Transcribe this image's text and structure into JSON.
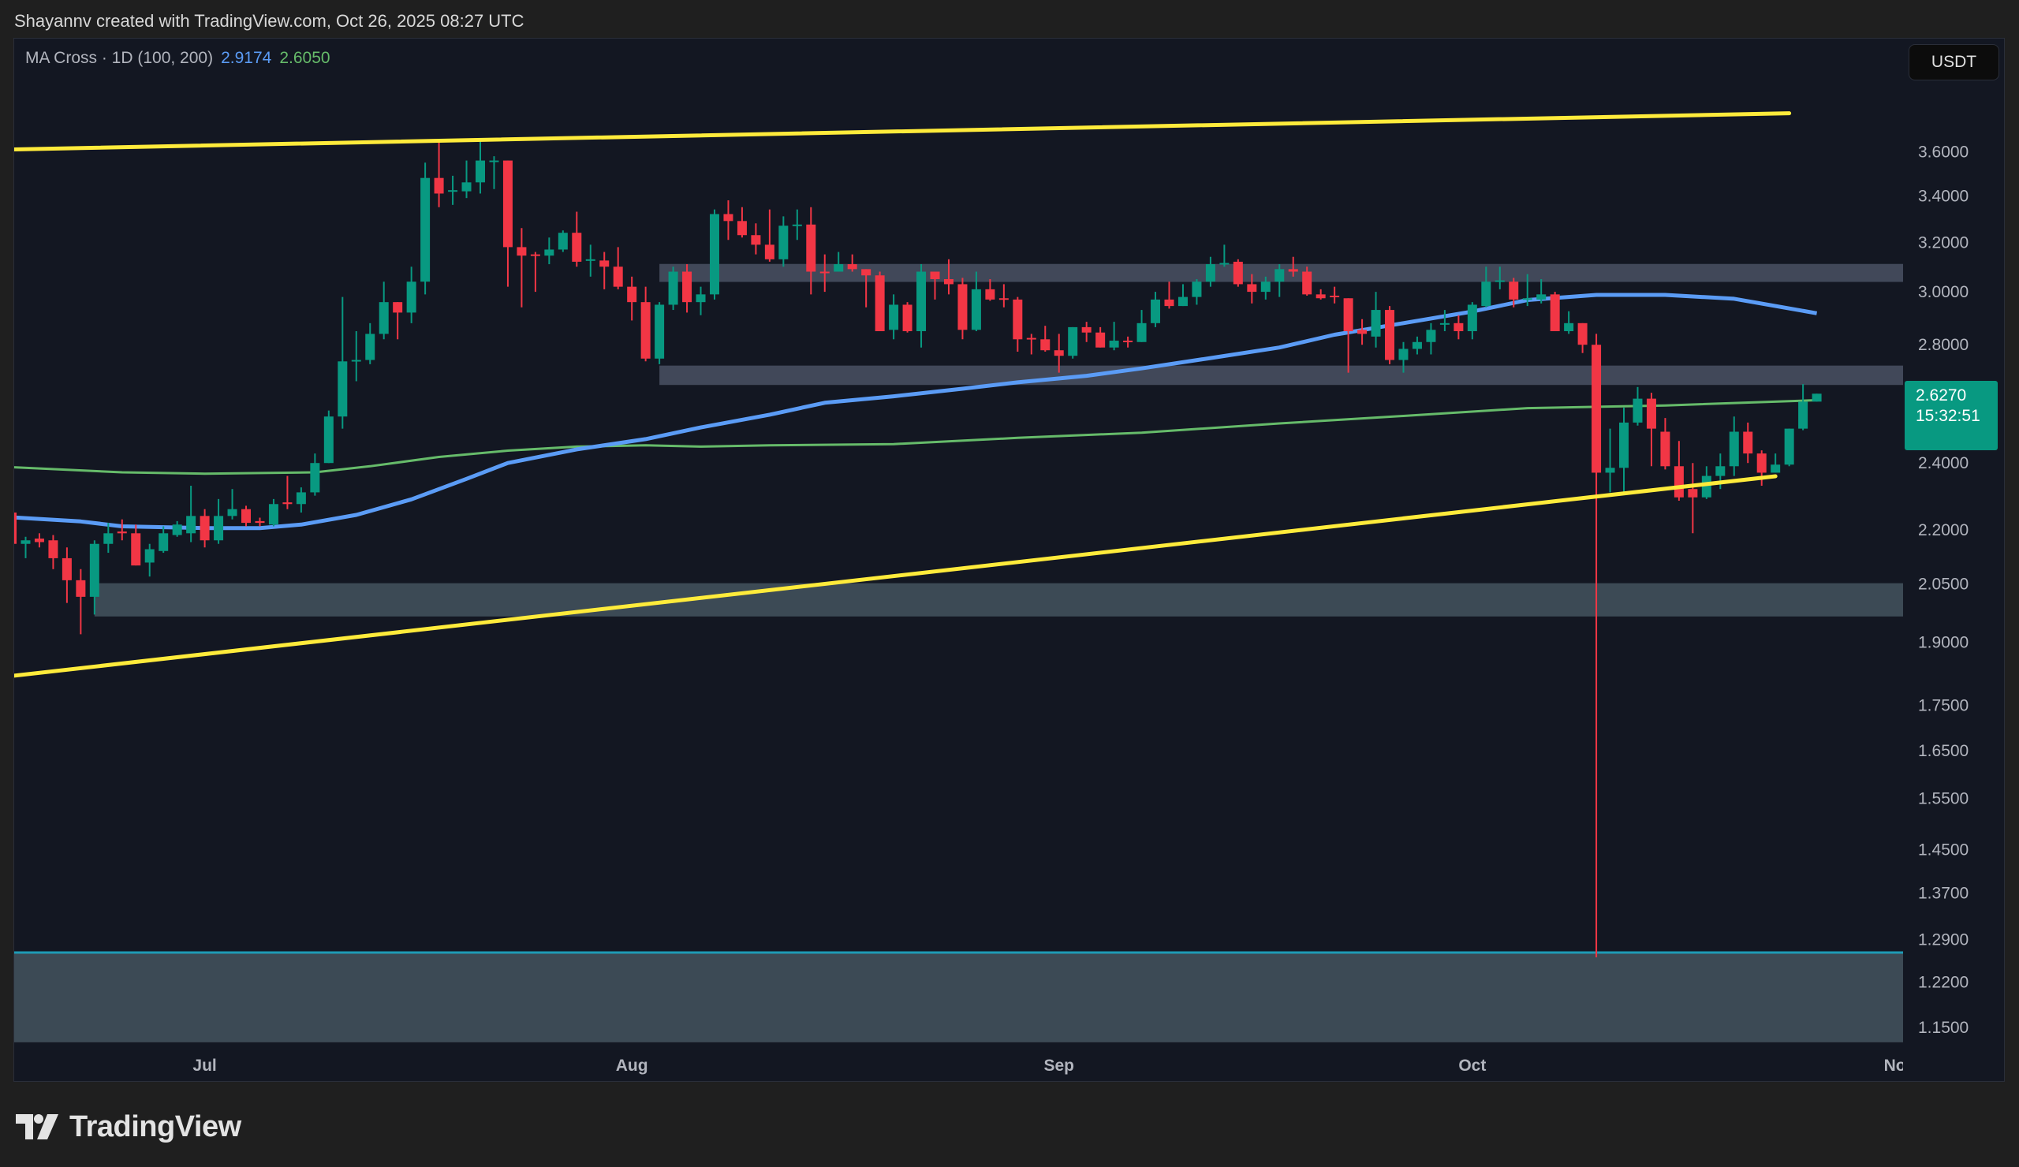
{
  "header": {
    "credit": "Shayannv created with TradingView.com, Oct 26, 2025 08:27 UTC"
  },
  "legend": {
    "indicator": "MA Cross · 1D (100, 200)",
    "ma100_value": "2.9174",
    "ma200_value": "2.6050"
  },
  "currency_button": "USDT",
  "last_price": {
    "price": "2.6270",
    "countdown": "15:32:51"
  },
  "footer": {
    "logo_text": "TradingView"
  },
  "colors": {
    "up": "#089981",
    "down": "#f23645",
    "ma100": "#5b9cf6",
    "ma200": "#66bb6a",
    "trendline": "#ffeb3b",
    "zone": "#4a5163",
    "support_zone": "#3c4a55",
    "bottom_zone_edge": "#1e9bb5",
    "background": "#131722"
  },
  "chart_data": {
    "type": "candlestick",
    "title": "",
    "yscale": "log",
    "ylim": [
      1.13,
      4.16
    ],
    "xlim": [
      "2025-06-17",
      "2025-11-01"
    ],
    "grid": false,
    "y_ticks": [
      "3.6000",
      "3.4000",
      "3.2000",
      "3.0000",
      "2.8000",
      "2.4000",
      "2.2000",
      "2.0500",
      "1.9000",
      "1.7500",
      "1.6500",
      "1.5500",
      "1.4500",
      "1.3700",
      "1.2900",
      "1.2200",
      "1.1500"
    ],
    "x_ticks": [
      {
        "label": "Jul",
        "date": "2025-07-01"
      },
      {
        "label": "Aug",
        "date": "2025-08-01"
      },
      {
        "label": "Sep",
        "date": "2025-09-01"
      },
      {
        "label": "Oct",
        "date": "2025-10-01"
      },
      {
        "label": "Nov",
        "date": "2025-11-01"
      }
    ],
    "candles_fields": [
      "date",
      "open",
      "high",
      "low",
      "close"
    ],
    "candles": [
      [
        "2025-06-17",
        2.25,
        2.26,
        2.16,
        2.16
      ],
      [
        "2025-06-18",
        2.16,
        2.18,
        2.12,
        2.17
      ],
      [
        "2025-06-19",
        2.175,
        2.19,
        2.15,
        2.165
      ],
      [
        "2025-06-20",
        2.17,
        2.185,
        2.09,
        2.12
      ],
      [
        "2025-06-21",
        2.12,
        2.15,
        2.0,
        2.06
      ],
      [
        "2025-06-22",
        2.06,
        2.09,
        1.92,
        2.016
      ],
      [
        "2025-06-23",
        2.016,
        2.17,
        1.97,
        2.16
      ],
      [
        "2025-06-24",
        2.16,
        2.22,
        2.135,
        2.19
      ],
      [
        "2025-06-25",
        2.195,
        2.23,
        2.17,
        2.19
      ],
      [
        "2025-06-26",
        2.19,
        2.215,
        2.1,
        2.1
      ],
      [
        "2025-06-27",
        2.108,
        2.16,
        2.07,
        2.145
      ],
      [
        "2025-06-28",
        2.14,
        2.21,
        2.135,
        2.19
      ],
      [
        "2025-06-29",
        2.185,
        2.225,
        2.18,
        2.215
      ],
      [
        "2025-06-30",
        2.19,
        2.33,
        2.165,
        2.24
      ],
      [
        "2025-07-01",
        2.24,
        2.26,
        2.15,
        2.17
      ],
      [
        "2025-07-02",
        2.17,
        2.29,
        2.16,
        2.24
      ],
      [
        "2025-07-03",
        2.24,
        2.32,
        2.23,
        2.26
      ],
      [
        "2025-07-04",
        2.26,
        2.27,
        2.21,
        2.22
      ],
      [
        "2025-07-05",
        2.225,
        2.235,
        2.21,
        2.22
      ],
      [
        "2025-07-06",
        2.215,
        2.29,
        2.21,
        2.275
      ],
      [
        "2025-07-07",
        2.28,
        2.36,
        2.26,
        2.275
      ],
      [
        "2025-07-08",
        2.275,
        2.325,
        2.25,
        2.31
      ],
      [
        "2025-07-09",
        2.31,
        2.43,
        2.3,
        2.4
      ],
      [
        "2025-07-10",
        2.4,
        2.57,
        2.4,
        2.55
      ],
      [
        "2025-07-11",
        2.55,
        2.98,
        2.51,
        2.74
      ],
      [
        "2025-07-12",
        2.74,
        2.85,
        2.67,
        2.745
      ],
      [
        "2025-07-13",
        2.745,
        2.88,
        2.73,
        2.84
      ],
      [
        "2025-07-14",
        2.84,
        3.04,
        2.82,
        2.96
      ],
      [
        "2025-07-15",
        2.96,
        2.96,
        2.82,
        2.92
      ],
      [
        "2025-07-16",
        2.92,
        3.1,
        2.88,
        3.04
      ],
      [
        "2025-07-17",
        3.04,
        3.55,
        2.99,
        3.48
      ],
      [
        "2025-07-18",
        3.48,
        3.65,
        3.35,
        3.41
      ],
      [
        "2025-07-19",
        3.42,
        3.49,
        3.36,
        3.425
      ],
      [
        "2025-07-20",
        3.42,
        3.56,
        3.39,
        3.46
      ],
      [
        "2025-07-21",
        3.46,
        3.65,
        3.41,
        3.56
      ],
      [
        "2025-07-22",
        3.555,
        3.58,
        3.43,
        3.56
      ],
      [
        "2025-07-23",
        3.56,
        3.56,
        3.02,
        3.18
      ],
      [
        "2025-07-24",
        3.18,
        3.26,
        2.94,
        3.145
      ],
      [
        "2025-07-25",
        3.15,
        3.16,
        3.0,
        3.145
      ],
      [
        "2025-07-26",
        3.145,
        3.22,
        3.11,
        3.17
      ],
      [
        "2025-07-27",
        3.17,
        3.25,
        3.16,
        3.24
      ],
      [
        "2025-07-28",
        3.24,
        3.33,
        3.1,
        3.12
      ],
      [
        "2025-07-29",
        3.125,
        3.19,
        3.06,
        3.13
      ],
      [
        "2025-07-30",
        3.125,
        3.16,
        3.01,
        3.1
      ],
      [
        "2025-07-31",
        3.1,
        3.18,
        3.01,
        3.02
      ],
      [
        "2025-08-01",
        3.02,
        3.06,
        2.89,
        2.96
      ],
      [
        "2025-08-02",
        2.96,
        3.02,
        2.74,
        2.75
      ],
      [
        "2025-08-03",
        2.75,
        2.96,
        2.73,
        2.95
      ],
      [
        "2025-08-04",
        2.95,
        3.1,
        2.93,
        3.08
      ],
      [
        "2025-08-05",
        3.08,
        3.11,
        2.92,
        2.96
      ],
      [
        "2025-08-06",
        2.96,
        3.02,
        2.91,
        2.99
      ],
      [
        "2025-08-07",
        2.99,
        3.34,
        2.97,
        3.32
      ],
      [
        "2025-08-08",
        3.32,
        3.38,
        3.21,
        3.29
      ],
      [
        "2025-08-09",
        3.29,
        3.35,
        3.22,
        3.23
      ],
      [
        "2025-08-10",
        3.23,
        3.28,
        3.15,
        3.19
      ],
      [
        "2025-08-11",
        3.19,
        3.34,
        3.12,
        3.13
      ],
      [
        "2025-08-12",
        3.13,
        3.31,
        3.1,
        3.27
      ],
      [
        "2025-08-13",
        3.27,
        3.34,
        3.21,
        3.275
      ],
      [
        "2025-08-14",
        3.275,
        3.35,
        2.99,
        3.08
      ],
      [
        "2025-08-15",
        3.08,
        3.15,
        3.0,
        3.075
      ],
      [
        "2025-08-16",
        3.08,
        3.16,
        3.08,
        3.11
      ],
      [
        "2025-08-17",
        3.11,
        3.15,
        3.08,
        3.09
      ],
      [
        "2025-08-18",
        3.09,
        3.09,
        2.94,
        3.065
      ],
      [
        "2025-08-19",
        3.065,
        3.08,
        2.85,
        2.85
      ],
      [
        "2025-08-20",
        2.855,
        2.99,
        2.82,
        2.95
      ],
      [
        "2025-08-21",
        2.95,
        2.96,
        2.845,
        2.85
      ],
      [
        "2025-08-22",
        2.85,
        3.11,
        2.79,
        3.08
      ],
      [
        "2025-08-23",
        3.08,
        3.08,
        2.97,
        3.05
      ],
      [
        "2025-08-24",
        3.05,
        3.13,
        2.99,
        3.03
      ],
      [
        "2025-08-25",
        3.03,
        3.055,
        2.82,
        2.855
      ],
      [
        "2025-08-26",
        2.855,
        3.08,
        2.85,
        3.01
      ],
      [
        "2025-08-27",
        3.01,
        3.05,
        2.965,
        2.97
      ],
      [
        "2025-08-28",
        2.975,
        3.03,
        2.94,
        2.97
      ],
      [
        "2025-08-29",
        2.97,
        2.98,
        2.775,
        2.82
      ],
      [
        "2025-08-30",
        2.825,
        2.84,
        2.765,
        2.82
      ],
      [
        "2025-08-31",
        2.82,
        2.87,
        2.775,
        2.78
      ],
      [
        "2025-09-01",
        2.78,
        2.84,
        2.7,
        2.76
      ],
      [
        "2025-09-02",
        2.76,
        2.865,
        2.75,
        2.865
      ],
      [
        "2025-09-03",
        2.865,
        2.885,
        2.81,
        2.845
      ],
      [
        "2025-09-04",
        2.845,
        2.865,
        2.79,
        2.79
      ],
      [
        "2025-09-05",
        2.79,
        2.885,
        2.78,
        2.815
      ],
      [
        "2025-09-06",
        2.815,
        2.83,
        2.79,
        2.81
      ],
      [
        "2025-09-07",
        2.81,
        2.93,
        2.81,
        2.88
      ],
      [
        "2025-09-08",
        2.88,
        3.0,
        2.865,
        2.97
      ],
      [
        "2025-09-09",
        2.97,
        3.04,
        2.935,
        2.945
      ],
      [
        "2025-09-10",
        2.945,
        3.03,
        2.945,
        2.98
      ],
      [
        "2025-09-11",
        2.98,
        3.05,
        2.95,
        3.04
      ],
      [
        "2025-09-12",
        3.04,
        3.14,
        3.02,
        3.11
      ],
      [
        "2025-09-13",
        3.11,
        3.19,
        3.1,
        3.115
      ],
      [
        "2025-09-14",
        3.12,
        3.13,
        3.02,
        3.03
      ],
      [
        "2025-09-15",
        3.03,
        3.07,
        2.955,
        3.0
      ],
      [
        "2025-09-16",
        3.0,
        3.06,
        2.97,
        3.04
      ],
      [
        "2025-09-17",
        3.04,
        3.11,
        2.98,
        3.09
      ],
      [
        "2025-09-18",
        3.09,
        3.14,
        3.06,
        3.08
      ],
      [
        "2025-09-19",
        3.08,
        3.1,
        2.985,
        2.99
      ],
      [
        "2025-09-20",
        2.99,
        3.01,
        2.97,
        2.975
      ],
      [
        "2025-09-21",
        2.985,
        3.02,
        2.955,
        2.98
      ],
      [
        "2025-09-22",
        2.975,
        2.975,
        2.7,
        2.85
      ],
      [
        "2025-09-23",
        2.855,
        2.895,
        2.8,
        2.84
      ],
      [
        "2025-09-24",
        2.83,
        3.0,
        2.79,
        2.93
      ],
      [
        "2025-09-25",
        2.93,
        2.945,
        2.73,
        2.745
      ],
      [
        "2025-09-26",
        2.745,
        2.81,
        2.7,
        2.785
      ],
      [
        "2025-09-27",
        2.785,
        2.83,
        2.765,
        2.81
      ],
      [
        "2025-09-28",
        2.81,
        2.88,
        2.765,
        2.855
      ],
      [
        "2025-09-29",
        2.875,
        2.93,
        2.85,
        2.88
      ],
      [
        "2025-09-30",
        2.88,
        2.91,
        2.82,
        2.85
      ],
      [
        "2025-10-01",
        2.85,
        2.96,
        2.82,
        2.95
      ],
      [
        "2025-10-02",
        2.945,
        3.1,
        2.94,
        3.04
      ],
      [
        "2025-10-03",
        3.04,
        3.1,
        3.01,
        3.045
      ],
      [
        "2025-10-04",
        3.04,
        3.055,
        2.94,
        2.97
      ],
      [
        "2025-10-05",
        2.97,
        3.07,
        2.945,
        2.975
      ],
      [
        "2025-10-06",
        2.97,
        3.05,
        2.955,
        2.99
      ],
      [
        "2025-10-07",
        2.99,
        3.0,
        2.85,
        2.85
      ],
      [
        "2025-10-08",
        2.85,
        2.925,
        2.84,
        2.88
      ],
      [
        "2025-10-09",
        2.88,
        2.88,
        2.77,
        2.8
      ],
      [
        "2025-10-10",
        2.8,
        2.84,
        1.26,
        2.37
      ],
      [
        "2025-10-11",
        2.37,
        2.51,
        2.31,
        2.385
      ],
      [
        "2025-10-12",
        2.385,
        2.58,
        2.31,
        2.53
      ],
      [
        "2025-10-13",
        2.53,
        2.65,
        2.52,
        2.61
      ],
      [
        "2025-10-14",
        2.61,
        2.63,
        2.39,
        2.51
      ],
      [
        "2025-10-15",
        2.5,
        2.545,
        2.38,
        2.39
      ],
      [
        "2025-10-16",
        2.39,
        2.47,
        2.285,
        2.295
      ],
      [
        "2025-10-17",
        2.32,
        2.4,
        2.19,
        2.295
      ],
      [
        "2025-10-18",
        2.295,
        2.39,
        2.29,
        2.36
      ],
      [
        "2025-10-19",
        2.36,
        2.43,
        2.32,
        2.39
      ],
      [
        "2025-10-20",
        2.39,
        2.55,
        2.36,
        2.5
      ],
      [
        "2025-10-21",
        2.5,
        2.53,
        2.4,
        2.43
      ],
      [
        "2025-10-22",
        2.43,
        2.44,
        2.33,
        2.37
      ],
      [
        "2025-10-23",
        2.37,
        2.43,
        2.37,
        2.395
      ],
      [
        "2025-10-24",
        2.395,
        2.51,
        2.39,
        2.51
      ],
      [
        "2025-10-25",
        2.51,
        2.66,
        2.505,
        2.6
      ],
      [
        "2025-10-26",
        2.6,
        2.627,
        2.6,
        2.627
      ]
    ],
    "ma100": [
      [
        "2025-06-17",
        2.236
      ],
      [
        "2025-06-22",
        2.224
      ],
      [
        "2025-06-25",
        2.21
      ],
      [
        "2025-07-01",
        2.205
      ],
      [
        "2025-07-05",
        2.205
      ],
      [
        "2025-07-08",
        2.215
      ],
      [
        "2025-07-12",
        2.243
      ],
      [
        "2025-07-16",
        2.289
      ],
      [
        "2025-07-20",
        2.351
      ],
      [
        "2025-07-23",
        2.4
      ],
      [
        "2025-07-28",
        2.443
      ],
      [
        "2025-08-02",
        2.476
      ],
      [
        "2025-08-06",
        2.514
      ],
      [
        "2025-08-11",
        2.556
      ],
      [
        "2025-08-15",
        2.596
      ],
      [
        "2025-08-20",
        2.618
      ],
      [
        "2025-08-25",
        2.644
      ],
      [
        "2025-08-29",
        2.666
      ],
      [
        "2025-09-03",
        2.689
      ],
      [
        "2025-09-07",
        2.715
      ],
      [
        "2025-09-12",
        2.752
      ],
      [
        "2025-09-17",
        2.79
      ],
      [
        "2025-09-21",
        2.837
      ],
      [
        "2025-09-26",
        2.88
      ],
      [
        "2025-10-01",
        2.924
      ],
      [
        "2025-10-05",
        2.968
      ],
      [
        "2025-10-10",
        2.988
      ],
      [
        "2025-10-15",
        2.988
      ],
      [
        "2025-10-20",
        2.973
      ],
      [
        "2025-10-26",
        2.9174
      ]
    ],
    "ma200": [
      [
        "2025-06-17",
        2.387
      ],
      [
        "2025-06-25",
        2.371
      ],
      [
        "2025-07-01",
        2.367
      ],
      [
        "2025-07-09",
        2.371
      ],
      [
        "2025-07-13",
        2.39
      ],
      [
        "2025-07-18",
        2.419
      ],
      [
        "2025-07-23",
        2.439
      ],
      [
        "2025-07-28",
        2.452
      ],
      [
        "2025-08-02",
        2.456
      ],
      [
        "2025-08-06",
        2.452
      ],
      [
        "2025-08-11",
        2.456
      ],
      [
        "2025-08-20",
        2.46
      ],
      [
        "2025-08-29",
        2.48
      ],
      [
        "2025-09-07",
        2.497
      ],
      [
        "2025-09-17",
        2.527
      ],
      [
        "2025-09-26",
        2.552
      ],
      [
        "2025-10-05",
        2.578
      ],
      [
        "2025-10-15",
        2.587
      ],
      [
        "2025-10-26",
        2.605
      ]
    ],
    "trendlines": [
      {
        "from": [
          "2025-06-17",
          3.612
        ],
        "to": [
          "2025-10-24",
          3.786
        ]
      },
      {
        "from": [
          "2025-06-17",
          1.819
        ],
        "to": [
          "2025-10-23",
          2.359
        ]
      }
    ],
    "zones": [
      {
        "start": "2025-08-03",
        "top": 3.111,
        "bottom": 3.039,
        "kind": "resistance"
      },
      {
        "start": "2025-08-03",
        "top": 2.725,
        "bottom": 2.657,
        "kind": "resistance"
      },
      {
        "start": "2025-06-23",
        "top": 2.052,
        "bottom": 1.965,
        "kind": "support"
      },
      {
        "start": "2025-06-17",
        "top": 1.268,
        "bottom": 1.128,
        "kind": "bottom"
      }
    ]
  }
}
